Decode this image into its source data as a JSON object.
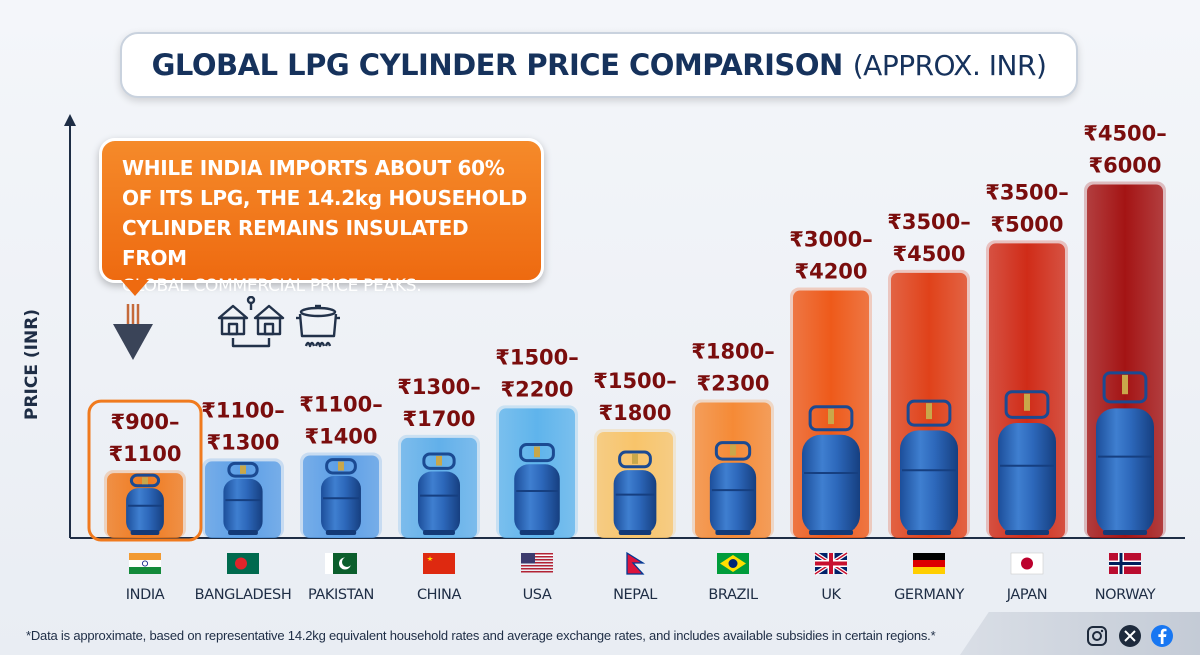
{
  "title": "GLOBAL LPG CYLINDER PRICE COMPARISON",
  "title_unit": "(APPROX. INR)",
  "callout": {
    "line1": "WHILE INDIA IMPORTS ABOUT 60%",
    "line2": "OF ITS LPG, THE 14.2kg HOUSEHOLD",
    "line3": "CYLINDER REMAINS INSULATED FROM",
    "line4": "GLOBAL COMMERCIAL PRICE PEAKS."
  },
  "footnote": "*Data is approximate, based on representative 14.2kg equivalent household rates and average exchange rates, and includes available subsidies in certain regions.*",
  "icons": [
    "houses-network-icon",
    "cooking-pot-icon",
    "down-arrow-icon",
    "instagram-icon",
    "x-icon",
    "facebook-icon"
  ],
  "chart_data": {
    "type": "bar",
    "title": "GLOBAL LPG CYLINDER PRICE COMPARISON (APPROX. INR)",
    "ylabel": "PRICE (INR)",
    "xlabel": "",
    "categories": [
      "INDIA",
      "BANGLADESH",
      "PAKISTAN",
      "CHINA",
      "USA",
      "NEPAL",
      "BRAZIL",
      "UK",
      "GERMANY",
      "JAPAN",
      "NORWAY"
    ],
    "ranges": [
      [
        900,
        1100
      ],
      [
        1100,
        1300
      ],
      [
        1100,
        1400
      ],
      [
        1300,
        1700
      ],
      [
        1500,
        2200
      ],
      [
        1500,
        1800
      ],
      [
        1800,
        2300
      ],
      [
        3000,
        4200
      ],
      [
        3500,
        4500
      ],
      [
        3500,
        5000
      ],
      [
        4500,
        6000
      ]
    ],
    "labels_top": [
      "₹900–",
      "₹1100–",
      "₹1100–",
      "₹1300–",
      "₹1500–",
      "₹1500–",
      "₹1800–",
      "₹3000–",
      "₹3500–",
      "₹3500–",
      "₹4500–"
    ],
    "labels_bottom": [
      "₹1100",
      "₹1300",
      "₹1400",
      "₹1700",
      "₹2200",
      "₹1800",
      "₹2300",
      "₹4200",
      "₹4500",
      "₹5000",
      "₹6000"
    ],
    "bar_colors": [
      "#f07a1e",
      "#5b9ee6",
      "#5b9ee6",
      "#62b0ea",
      "#5fb4ec",
      "#f8c46a",
      "#f58a36",
      "#ee5a1a",
      "#e0421a",
      "#d02c18",
      "#a41414"
    ],
    "highlight": "INDIA",
    "label_color": "#7a0d0d",
    "grid": false,
    "ylim": [
      0,
      6500
    ]
  }
}
